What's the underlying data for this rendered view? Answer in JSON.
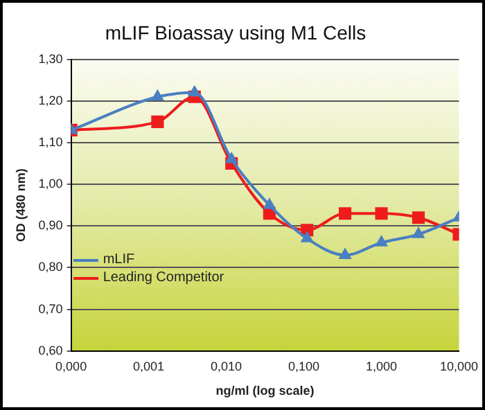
{
  "chart_data": {
    "type": "line",
    "title": "mLIF Bioassay using M1 Cells",
    "xlabel": "ng/ml (log scale)",
    "ylabel": "OD (480 nm)",
    "log": "x",
    "series": [
      {
        "name": "mLIF",
        "color": "#4a7fc1",
        "marker": "triangle",
        "x": [
          0.0001,
          0.0013,
          0.0039,
          0.0117,
          0.036,
          0.11,
          0.34,
          1.0,
          3.0,
          10
        ],
        "values": [
          1.13,
          1.21,
          1.22,
          1.06,
          0.95,
          0.87,
          0.83,
          0.86,
          0.88,
          0.92
        ]
      },
      {
        "name": "Leading Competitor",
        "color": "#ee1c1c",
        "marker": "square",
        "x": [
          0.0001,
          0.0013,
          0.0039,
          0.0117,
          0.036,
          0.11,
          0.34,
          1.0,
          3.0,
          10
        ],
        "values": [
          1.13,
          1.15,
          1.21,
          1.05,
          0.93,
          0.89,
          0.93,
          0.93,
          0.92,
          0.88
        ]
      }
    ],
    "xlim": [
      0.0001,
      10
    ],
    "xticks": [
      {
        "value": 0.0001,
        "label": "0,000"
      },
      {
        "value": 0.001,
        "label": "0,001"
      },
      {
        "value": 0.01,
        "label": "0,010"
      },
      {
        "value": 0.1,
        "label": "0,100"
      },
      {
        "value": 1,
        "label": "1,000"
      },
      {
        "value": 10,
        "label": "10,000"
      }
    ],
    "ylim": [
      0.6,
      1.3
    ],
    "yticks": [
      {
        "value": 0.6,
        "label": "0,60"
      },
      {
        "value": 0.7,
        "label": "0,70"
      },
      {
        "value": 0.8,
        "label": "0,80"
      },
      {
        "value": 0.9,
        "label": "0,90"
      },
      {
        "value": 1.0,
        "label": "1,00"
      },
      {
        "value": 1.1,
        "label": "1,10"
      },
      {
        "value": 1.2,
        "label": "1,20"
      },
      {
        "value": 1.3,
        "label": "1,30"
      }
    ],
    "grid": "y",
    "legend": "bottom left",
    "line_style": "solid"
  }
}
